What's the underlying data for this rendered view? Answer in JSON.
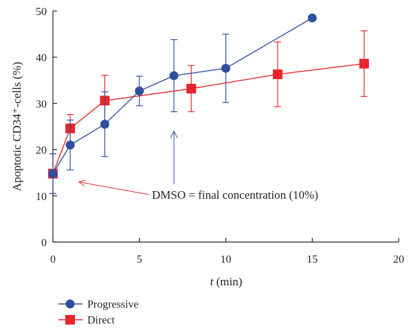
{
  "chart_data": {
    "type": "line",
    "ylabel": "Apoptotic CD34⁺-cells (%)",
    "xlabel_var": "t",
    "xlabel_unit": " (min)",
    "xlim": [
      0,
      20
    ],
    "ylim": [
      0,
      50
    ],
    "xticks": [
      0,
      5,
      10,
      15,
      20
    ],
    "yticks": [
      0,
      10,
      20,
      30,
      40,
      50
    ],
    "grid": false,
    "legend_position": "bottom-left",
    "series": [
      {
        "name": "Progressive",
        "color": "#2e4f9e",
        "marker": "circle",
        "x": [
          0,
          1,
          3,
          5,
          7,
          10,
          15
        ],
        "y": [
          14.8,
          21.0,
          25.5,
          32.7,
          36.0,
          37.6,
          48.5
        ],
        "err": [
          4.3,
          5.4,
          7.0,
          3.2,
          7.8,
          7.4,
          null
        ]
      },
      {
        "name": "Direct",
        "color": "#e8242b",
        "marker": "square",
        "x": [
          0,
          1,
          3,
          8,
          13,
          18
        ],
        "y": [
          14.8,
          24.6,
          30.6,
          33.2,
          36.3,
          38.6
        ],
        "err": [
          4.3,
          3.0,
          5.5,
          5.0,
          7.0,
          7.1
        ]
      }
    ],
    "annotation": {
      "text": "DMSO = final concentration (10%)",
      "red_arrow_target": [
        1.5,
        13
      ],
      "blue_arrow_x": 7,
      "blue_arrow_y": [
        12.5,
        24
      ]
    }
  }
}
